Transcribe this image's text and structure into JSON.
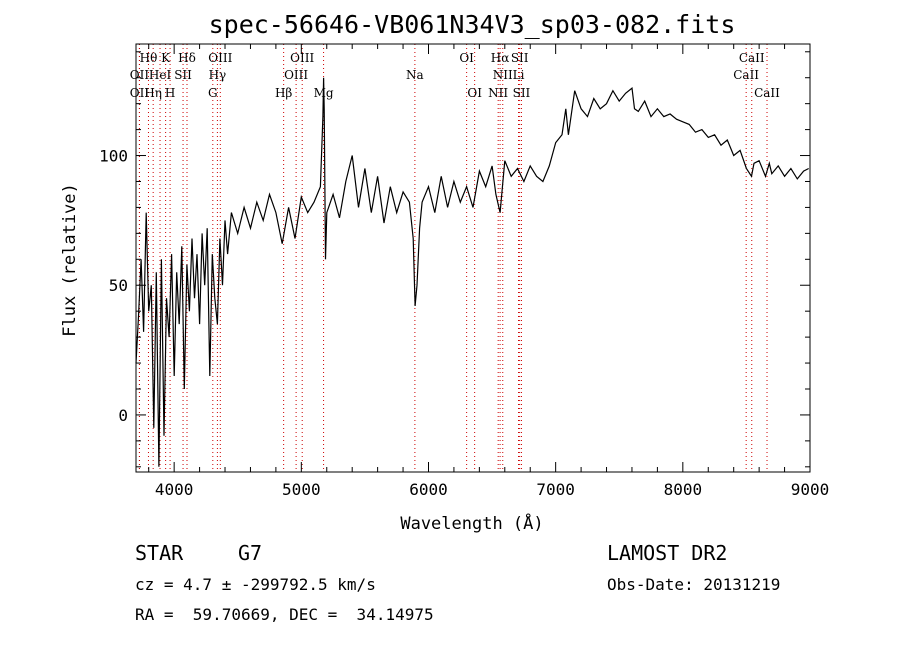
{
  "chart_data": {
    "type": "line",
    "title": "spec-56646-VB061N34V3_sp03-082.fits",
    "xlabel": "Wavelength (Å)",
    "ylabel": "Flux (relative)",
    "xlim": [
      3700,
      9000
    ],
    "ylim": [
      -22,
      143
    ],
    "x_ticks": [
      4000,
      5000,
      6000,
      7000,
      8000,
      9000
    ],
    "y_ticks": [
      0,
      50,
      100
    ],
    "series": [
      {
        "points": [
          [
            3700,
            20
          ],
          [
            3720,
            38
          ],
          [
            3740,
            60
          ],
          [
            3760,
            32
          ],
          [
            3780,
            78
          ],
          [
            3800,
            40
          ],
          [
            3820,
            50
          ],
          [
            3840,
            -5
          ],
          [
            3860,
            55
          ],
          [
            3880,
            -20
          ],
          [
            3900,
            60
          ],
          [
            3920,
            -8
          ],
          [
            3940,
            45
          ],
          [
            3960,
            30
          ],
          [
            3980,
            62
          ],
          [
            4000,
            15
          ],
          [
            4020,
            55
          ],
          [
            4040,
            35
          ],
          [
            4060,
            65
          ],
          [
            4080,
            10
          ],
          [
            4100,
            58
          ],
          [
            4120,
            40
          ],
          [
            4140,
            68
          ],
          [
            4160,
            45
          ],
          [
            4180,
            62
          ],
          [
            4200,
            35
          ],
          [
            4220,
            70
          ],
          [
            4240,
            50
          ],
          [
            4260,
            72
          ],
          [
            4280,
            15
          ],
          [
            4300,
            62
          ],
          [
            4320,
            45
          ],
          [
            4340,
            35
          ],
          [
            4360,
            68
          ],
          [
            4380,
            50
          ],
          [
            4400,
            75
          ],
          [
            4420,
            62
          ],
          [
            4450,
            78
          ],
          [
            4500,
            70
          ],
          [
            4550,
            80
          ],
          [
            4600,
            72
          ],
          [
            4650,
            82
          ],
          [
            4700,
            75
          ],
          [
            4750,
            85
          ],
          [
            4800,
            78
          ],
          [
            4850,
            66
          ],
          [
            4900,
            80
          ],
          [
            4950,
            68
          ],
          [
            5000,
            84
          ],
          [
            5050,
            78
          ],
          [
            5100,
            82
          ],
          [
            5150,
            88
          ],
          [
            5170,
            115
          ],
          [
            5175,
            130
          ],
          [
            5180,
            118
          ],
          [
            5190,
            60
          ],
          [
            5200,
            78
          ],
          [
            5250,
            85
          ],
          [
            5300,
            76
          ],
          [
            5350,
            90
          ],
          [
            5400,
            100
          ],
          [
            5450,
            80
          ],
          [
            5500,
            95
          ],
          [
            5550,
            78
          ],
          [
            5600,
            92
          ],
          [
            5650,
            74
          ],
          [
            5700,
            88
          ],
          [
            5750,
            78
          ],
          [
            5800,
            86
          ],
          [
            5850,
            82
          ],
          [
            5880,
            68
          ],
          [
            5895,
            42
          ],
          [
            5910,
            50
          ],
          [
            5930,
            72
          ],
          [
            5950,
            82
          ],
          [
            6000,
            88
          ],
          [
            6050,
            78
          ],
          [
            6100,
            92
          ],
          [
            6150,
            80
          ],
          [
            6200,
            90
          ],
          [
            6250,
            82
          ],
          [
            6300,
            88
          ],
          [
            6350,
            80
          ],
          [
            6400,
            94
          ],
          [
            6450,
            88
          ],
          [
            6500,
            96
          ],
          [
            6530,
            85
          ],
          [
            6563,
            78
          ],
          [
            6600,
            98
          ],
          [
            6650,
            92
          ],
          [
            6700,
            95
          ],
          [
            6750,
            90
          ],
          [
            6800,
            96
          ],
          [
            6850,
            92
          ],
          [
            6900,
            90
          ],
          [
            6950,
            96
          ],
          [
            7000,
            105
          ],
          [
            7050,
            108
          ],
          [
            7080,
            118
          ],
          [
            7100,
            108
          ],
          [
            7150,
            125
          ],
          [
            7200,
            118
          ],
          [
            7250,
            115
          ],
          [
            7300,
            122
          ],
          [
            7350,
            118
          ],
          [
            7400,
            120
          ],
          [
            7450,
            125
          ],
          [
            7500,
            121
          ],
          [
            7550,
            124
          ],
          [
            7600,
            126
          ],
          [
            7620,
            118
          ],
          [
            7650,
            117
          ],
          [
            7700,
            121
          ],
          [
            7750,
            115
          ],
          [
            7800,
            118
          ],
          [
            7850,
            115
          ],
          [
            7900,
            116
          ],
          [
            7950,
            114
          ],
          [
            8000,
            113
          ],
          [
            8050,
            112
          ],
          [
            8100,
            109
          ],
          [
            8150,
            110
          ],
          [
            8200,
            107
          ],
          [
            8250,
            108
          ],
          [
            8300,
            104
          ],
          [
            8350,
            106
          ],
          [
            8400,
            100
          ],
          [
            8450,
            102
          ],
          [
            8500,
            95
          ],
          [
            8540,
            92
          ],
          [
            8560,
            97
          ],
          [
            8600,
            98
          ],
          [
            8650,
            92
          ],
          [
            8680,
            97
          ],
          [
            8700,
            93
          ],
          [
            8750,
            96
          ],
          [
            8800,
            92
          ],
          [
            8850,
            95
          ],
          [
            8900,
            91
          ],
          [
            8950,
            94
          ],
          [
            8990,
            95
          ]
        ]
      }
    ],
    "lines": [
      {
        "label": "OII",
        "wavelength": 3727,
        "row": 1
      },
      {
        "label": "OII",
        "wavelength": 3727,
        "row": 2
      },
      {
        "label": "Hθ",
        "wavelength": 3798,
        "row": 0
      },
      {
        "label": "Hη",
        "wavelength": 3835,
        "row": 2
      },
      {
        "label": "K",
        "wavelength": 3933,
        "row": 0
      },
      {
        "label": "HeI",
        "wavelength": 3889,
        "row": 1
      },
      {
        "label": "SII",
        "wavelength": 4070,
        "row": 1
      },
      {
        "label": "H",
        "wavelength": 3968,
        "row": 2
      },
      {
        "label": "Hδ",
        "wavelength": 4101,
        "row": 0
      },
      {
        "label": "OIII",
        "wavelength": 4363,
        "row": 0
      },
      {
        "label": "Hγ",
        "wavelength": 4340,
        "row": 1
      },
      {
        "label": "G",
        "wavelength": 4304,
        "row": 2
      },
      {
        "label": "Hβ",
        "wavelength": 4861,
        "row": 2
      },
      {
        "label": "OIII",
        "wavelength": 5007,
        "row": 0
      },
      {
        "label": "OIII",
        "wavelength": 4959,
        "row": 1
      },
      {
        "label": "Mg",
        "wavelength": 5175,
        "row": 2
      },
      {
        "label": "Na",
        "wavelength": 5893,
        "row": 1
      },
      {
        "label": "OI",
        "wavelength": 6300,
        "row": 0
      },
      {
        "label": "OI",
        "wavelength": 6363,
        "row": 2
      },
      {
        "label": "Hα",
        "wavelength": 6563,
        "row": 0
      },
      {
        "label": "SII",
        "wavelength": 6717,
        "row": 0
      },
      {
        "label": "NII",
        "wavelength": 6584,
        "row": 1
      },
      {
        "label": "Li",
        "wavelength": 6708,
        "row": 1
      },
      {
        "label": "NII",
        "wavelength": 6548,
        "row": 2
      },
      {
        "label": "SII",
        "wavelength": 6731,
        "row": 2
      },
      {
        "label": "CaII",
        "wavelength": 8542,
        "row": 0
      },
      {
        "label": "CaII",
        "wavelength": 8498,
        "row": 1
      },
      {
        "label": "CaII",
        "wavelength": 8662,
        "row": 2
      }
    ],
    "colors": {
      "line": "#000000",
      "marker": "#cc0000",
      "background": "#ffffff"
    }
  },
  "info": {
    "object_class": "STAR",
    "subclass": "G7",
    "survey": "LAMOST DR2",
    "redshift": "cz = 4.7 ± -299792.5 km/s",
    "obs_date": "Obs-Date: 20131219",
    "coords": "RA =  59.70669, DEC =  34.14975"
  }
}
